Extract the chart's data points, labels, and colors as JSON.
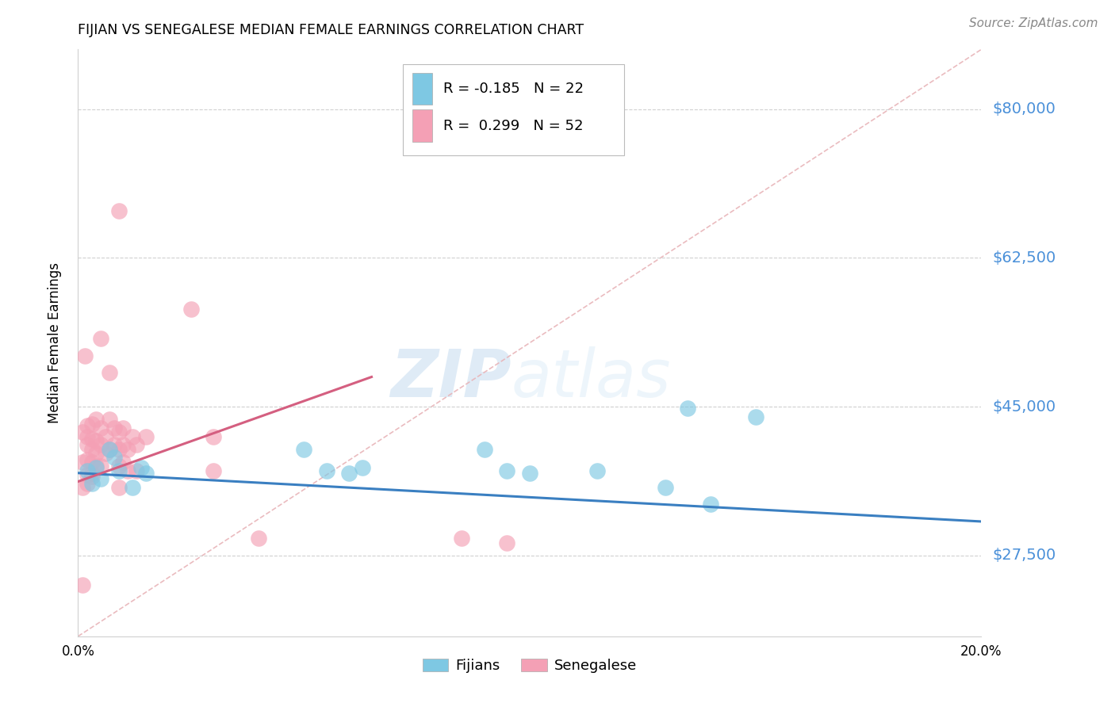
{
  "title": "FIJIAN VS SENEGALESE MEDIAN FEMALE EARNINGS CORRELATION CHART",
  "source": "Source: ZipAtlas.com",
  "ylabel": "Median Female Earnings",
  "yticks": [
    27500,
    45000,
    62500,
    80000
  ],
  "ytick_labels": [
    "$27,500",
    "$45,000",
    "$62,500",
    "$80,000"
  ],
  "xlim": [
    0.0,
    0.2
  ],
  "ylim": [
    18000,
    87000
  ],
  "legend_fijian": "Fijians",
  "legend_senegalese": "Senegalese",
  "fijian_R": "R = -0.185",
  "fijian_N": "N = 22",
  "senegalese_R": "R =  0.299",
  "senegalese_N": "N = 52",
  "fijian_color": "#7ec8e3",
  "senegalese_color": "#f4a0b5",
  "fijian_line_color": "#3a7fc1",
  "senegalese_line_color": "#d45f80",
  "dashed_line_color": "#e8b4b8",
  "watermark_zip": "ZIP",
  "watermark_atlas": "atlas",
  "fijian_line_x": [
    0.0,
    0.2
  ],
  "fijian_line_y": [
    37200,
    31500
  ],
  "senegalese_line_x": [
    0.0,
    0.065
  ],
  "senegalese_line_y": [
    36200,
    48500
  ],
  "dashed_line_x": [
    0.0,
    0.2
  ],
  "dashed_line_y": [
    18000,
    87000
  ],
  "fijian_points": [
    [
      0.002,
      37500
    ],
    [
      0.003,
      36000
    ],
    [
      0.004,
      37800
    ],
    [
      0.005,
      36500
    ],
    [
      0.007,
      40000
    ],
    [
      0.008,
      39000
    ],
    [
      0.009,
      37500
    ],
    [
      0.012,
      35500
    ],
    [
      0.014,
      37800
    ],
    [
      0.015,
      37200
    ],
    [
      0.05,
      40000
    ],
    [
      0.055,
      37500
    ],
    [
      0.06,
      37200
    ],
    [
      0.063,
      37800
    ],
    [
      0.09,
      40000
    ],
    [
      0.095,
      37500
    ],
    [
      0.1,
      37200
    ],
    [
      0.115,
      37500
    ],
    [
      0.13,
      35500
    ],
    [
      0.14,
      33500
    ],
    [
      0.135,
      44800
    ],
    [
      0.15,
      43800
    ]
  ],
  "senegalese_points": [
    [
      0.001,
      24000
    ],
    [
      0.001,
      35500
    ],
    [
      0.001,
      38500
    ],
    [
      0.001,
      42000
    ],
    [
      0.0015,
      51000
    ],
    [
      0.002,
      37000
    ],
    [
      0.002,
      38800
    ],
    [
      0.002,
      40500
    ],
    [
      0.002,
      41500
    ],
    [
      0.002,
      42800
    ],
    [
      0.002,
      36000
    ],
    [
      0.003,
      37200
    ],
    [
      0.003,
      38500
    ],
    [
      0.003,
      40000
    ],
    [
      0.003,
      41200
    ],
    [
      0.003,
      43000
    ],
    [
      0.003,
      36800
    ],
    [
      0.004,
      38000
    ],
    [
      0.004,
      39500
    ],
    [
      0.004,
      41000
    ],
    [
      0.004,
      43500
    ],
    [
      0.005,
      38000
    ],
    [
      0.005,
      40500
    ],
    [
      0.005,
      42500
    ],
    [
      0.005,
      53000
    ],
    [
      0.006,
      39500
    ],
    [
      0.006,
      41500
    ],
    [
      0.007,
      40000
    ],
    [
      0.007,
      43500
    ],
    [
      0.007,
      49000
    ],
    [
      0.008,
      40500
    ],
    [
      0.008,
      42500
    ],
    [
      0.009,
      35500
    ],
    [
      0.009,
      38000
    ],
    [
      0.009,
      40000
    ],
    [
      0.009,
      42000
    ],
    [
      0.009,
      68000
    ],
    [
      0.01,
      38500
    ],
    [
      0.01,
      40500
    ],
    [
      0.01,
      42500
    ],
    [
      0.011,
      37500
    ],
    [
      0.011,
      40000
    ],
    [
      0.012,
      41500
    ],
    [
      0.013,
      37500
    ],
    [
      0.013,
      40500
    ],
    [
      0.015,
      41500
    ],
    [
      0.025,
      56500
    ],
    [
      0.03,
      41500
    ],
    [
      0.03,
      37500
    ],
    [
      0.04,
      29500
    ],
    [
      0.085,
      29500
    ],
    [
      0.095,
      29000
    ]
  ]
}
